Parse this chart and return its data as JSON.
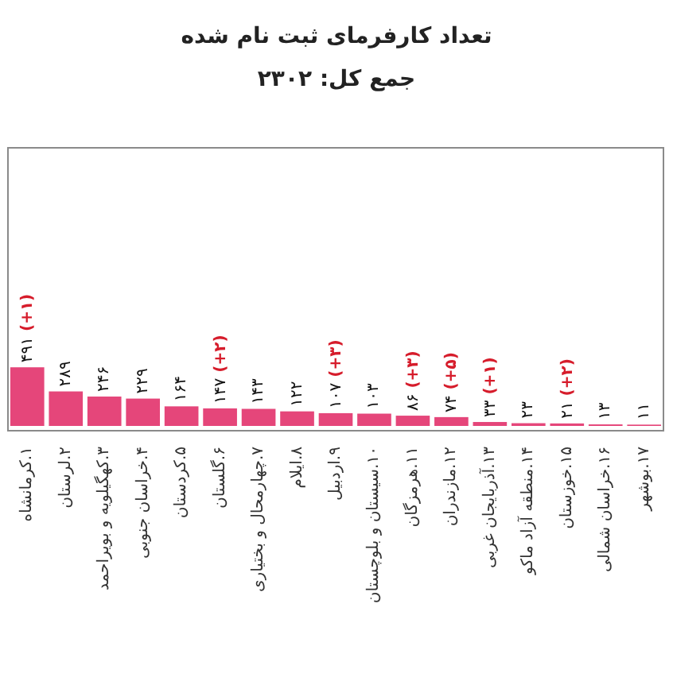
{
  "chart_data": {
    "type": "bar",
    "title": "تعداد کارفرمای ثبت نام شده",
    "subtitle": "جمع کل: ۲۳۰۲",
    "categories": [
      "۱.کرمانشاه",
      "۲.لرستان",
      "۳.کهگیلویه و بویراحمد",
      "۴.خراسان جنوبی",
      "۵.کردستان",
      "۶.گلستان",
      "۷.چهارمحال و بختیاری",
      "۸.ایلام",
      "۹.اردبیل",
      "۱۰.سیستان و بلوچستان",
      "۱۱.هرمزگان",
      "۱۲.مازندران",
      "۱۳.آذربایجان غربی",
      "۱۴.منطقه آزاد ماکو",
      "۱۵.خوزستان",
      "۱۶.خراسان شمالی",
      "۱۷.بوشهر"
    ],
    "values": [
      491,
      289,
      246,
      229,
      164,
      147,
      143,
      122,
      107,
      103,
      86,
      74,
      33,
      23,
      21,
      13,
      11
    ],
    "value_labels": [
      "۴۹۱ (+۱)",
      "۲۸۹",
      "۲۴۶",
      "۲۲۹",
      "۱۶۴",
      "۱۴۷ (+۲)",
      "۱۴۳",
      "۱۲۲",
      "۱۰۷ (+۳)",
      "۱۰۳",
      "۸۶ (+۳)",
      "۷۴ (+۵)",
      "۳۳ (+۱)",
      "۲۳",
      "۲۱ (+۲)",
      "۱۳",
      "۱۱"
    ],
    "color": "#e5467a",
    "tick_labels": "x"
  }
}
